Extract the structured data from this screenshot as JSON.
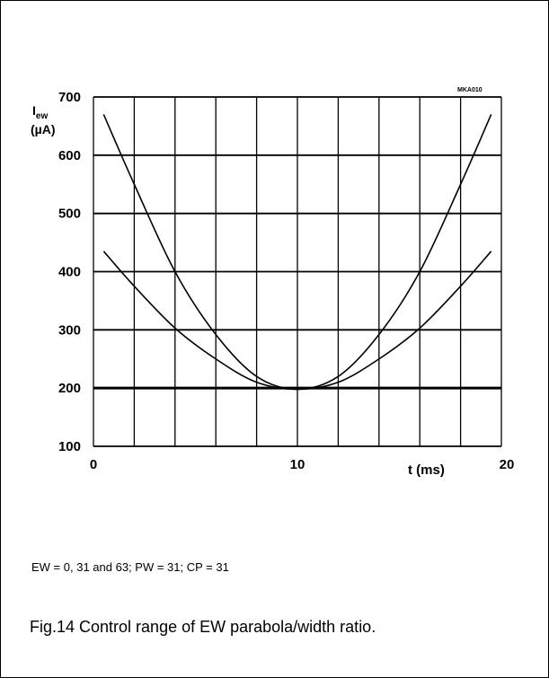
{
  "figure": {
    "code": "MKA010",
    "conditions": "EW = 0, 31 and 63; PW = 31; CP = 31",
    "caption": "Fig.14  Control range of EW parabola/width ratio."
  },
  "chart_data": {
    "type": "line",
    "title": "",
    "xlabel": "t  (ms)",
    "ylabel": "I_ew (µA)",
    "ylabel_main": "I",
    "ylabel_sub": "ew",
    "ylabel_unit": "(µA)",
    "xlim": [
      0,
      20
    ],
    "ylim": [
      100,
      700
    ],
    "x_ticks": [
      0,
      10,
      20
    ],
    "y_ticks": [
      100,
      200,
      300,
      400,
      500,
      600,
      700
    ],
    "x_grid_step": 2,
    "y_grid_step": 100,
    "grid": true,
    "series": [
      {
        "x": [
          0.5,
          2,
          4,
          6,
          8,
          10,
          12,
          14,
          16,
          18,
          19.5
        ],
        "y": [
          670,
          550,
          400,
          292,
          220,
          198,
          220,
          292,
          400,
          550,
          670
        ]
      },
      {
        "x": [
          0.5,
          2,
          4,
          6,
          8,
          10,
          12,
          14,
          16,
          18,
          19.5
        ],
        "y": [
          435,
          375,
          303,
          250,
          210,
          198,
          210,
          250,
          303,
          375,
          435
        ]
      },
      {
        "x": [
          0,
          20
        ],
        "y": [
          200,
          200
        ]
      }
    ]
  }
}
